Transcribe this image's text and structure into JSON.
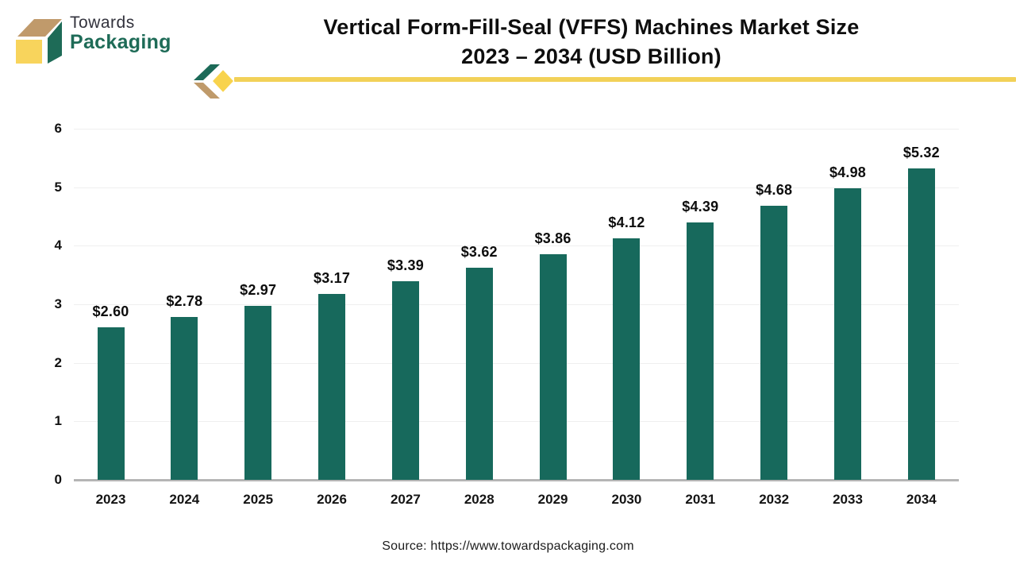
{
  "logo": {
    "line1": "Towards",
    "line2": "Packaging"
  },
  "title": {
    "line1": "Vertical Form-Fill-Seal (VFFS) Machines Market Size",
    "line2": "2023 – 2034 (USD Billion)"
  },
  "source": "Source: https://www.towardspackaging.com",
  "colors": {
    "bar": "#17695c",
    "logo_green": "#1e6b57",
    "logo_tan": "#c09a6b",
    "logo_yellow": "#f8d45c",
    "ribbon_yellow": "#f2d158",
    "gridline": "#efefef",
    "axis": "#b5b5b5"
  },
  "chart_data": {
    "type": "bar",
    "title": "Vertical Form-Fill-Seal (VFFS) Machines Market Size 2023 – 2034 (USD Billion)",
    "categories": [
      "2023",
      "2024",
      "2025",
      "2026",
      "2027",
      "2028",
      "2029",
      "2030",
      "2031",
      "2032",
      "2033",
      "2034"
    ],
    "values": [
      2.6,
      2.78,
      2.97,
      3.17,
      3.39,
      3.62,
      3.86,
      4.12,
      4.39,
      4.68,
      4.98,
      5.32
    ],
    "data_labels": [
      "$2.60",
      "$2.78",
      "$2.97",
      "$3.17",
      "$3.39",
      "$3.62",
      "$3.86",
      "$4.12",
      "$4.39",
      "$4.68",
      "$4.98",
      "$5.32"
    ],
    "xlabel": "",
    "ylabel": "",
    "ylim": [
      0,
      6
    ],
    "yticks": [
      0,
      1,
      2,
      3,
      4,
      5,
      6
    ],
    "grid": true,
    "legend": false,
    "bar_color": "#17695c",
    "unit": "USD Billion"
  }
}
